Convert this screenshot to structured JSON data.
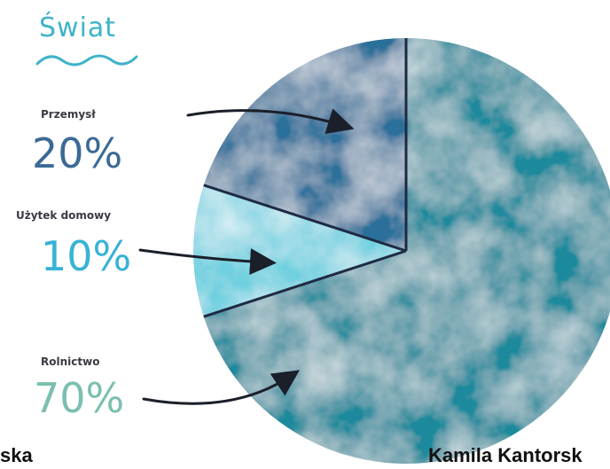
{
  "chart_data": {
    "type": "pie",
    "title": "Świat",
    "slices": [
      {
        "label": "Przemysł",
        "value": 20,
        "display": "20%",
        "color": "#2b6f9a"
      },
      {
        "label": "Użytek domowy",
        "value": 10,
        "display": "10%",
        "color": "#6fd0e0"
      },
      {
        "label": "Rolnictwo",
        "value": 70,
        "display": "70%",
        "color": "#1e8a9c"
      }
    ],
    "label_colors": {
      "Przemysł": "#3b6a96",
      "Użytek domowy": "#38b3d6",
      "Rolnictwo": "#7bbfb0"
    }
  },
  "footer": {
    "left": "ska",
    "right": "Kamila Kantorsk"
  }
}
